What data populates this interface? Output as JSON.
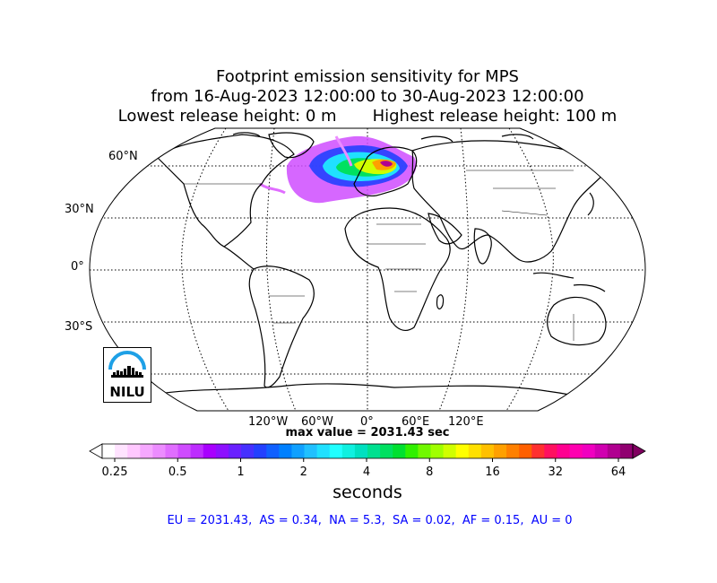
{
  "title": {
    "line1": "Footprint emission sensitivity for MPS",
    "line2": "from 16-Aug-2023 12:00:00 to 30-Aug-2023 12:00:00",
    "line3": "Lowest release height: 0 m       Highest release height: 100 m"
  },
  "map": {
    "projection": "Robinson",
    "lat_labels": [
      "60°N",
      "30°N",
      "0°",
      "30°S"
    ],
    "lon_labels": [
      "120°W",
      "60°W",
      "0°",
      "60°E",
      "120°E"
    ],
    "max_value_text": "max value = 2031.43 sec"
  },
  "colorbar": {
    "ticks": [
      "0.25",
      "0.5",
      "1",
      "2",
      "4",
      "8",
      "16",
      "32",
      "64"
    ],
    "unit": "seconds",
    "colors": [
      "#ffffff",
      "#ffe3ff",
      "#ffc8ff",
      "#f6a8ff",
      "#ec8cff",
      "#e06dff",
      "#cf4cff",
      "#bd2cff",
      "#a800ff",
      "#8d10ff",
      "#6a20ff",
      "#4630ff",
      "#2340ff",
      "#1060ff",
      "#0080ff",
      "#10a0ff",
      "#20c0ff",
      "#20e0ff",
      "#20ffff",
      "#10f0e0",
      "#00e0c0",
      "#00e090",
      "#00e060",
      "#00e030",
      "#30f000",
      "#70f800",
      "#a0ff00",
      "#d0ff00",
      "#ffff00",
      "#ffe000",
      "#ffc000",
      "#ffa000",
      "#ff8000",
      "#ff6000",
      "#ff3030",
      "#ff1060",
      "#ff0090",
      "#ff00b0",
      "#f000c0",
      "#d000b0",
      "#b00090",
      "#900070"
    ]
  },
  "logo": {
    "text": "NILU"
  },
  "region_stats": "EU = 2031.43,  AS = 0.34,  NA = 5.3,  SA = 0.02,  AF = 0.15,  AU = 0"
}
